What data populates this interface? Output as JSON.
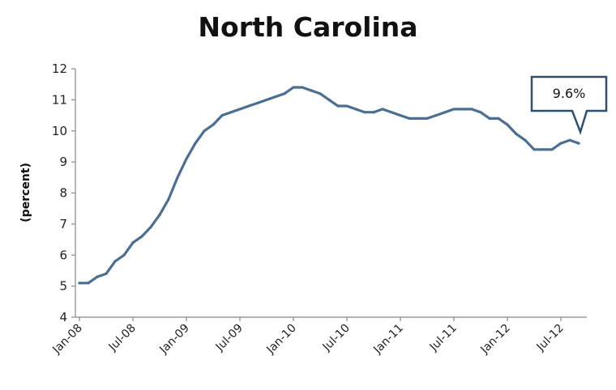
{
  "chart_data": {
    "type": "line",
    "title": "North Carolina",
    "xlabel": "",
    "ylabel": "(percent)",
    "ylim": [
      4,
      12
    ],
    "yticks": [
      "4",
      "5",
      "6",
      "7",
      "8",
      "9",
      "10",
      "11",
      "12"
    ],
    "xtick_labels": [
      "Jan-08",
      "Jul-08",
      "Jan-09",
      "Jul-09",
      "Jan-10",
      "Jul-10",
      "Jan-11",
      "Jul-11",
      "Jan-12",
      "Jul-12"
    ],
    "grid": false,
    "legend": "none",
    "line_color": "#4a6f93",
    "annotation": {
      "text": "9.6%",
      "month_index": 56,
      "value": 9.6
    },
    "series": [
      {
        "x": [
          "Jan-08",
          "Feb-08",
          "Mar-08",
          "Apr-08",
          "May-08",
          "Jun-08",
          "Jul-08",
          "Aug-08",
          "Sep-08",
          "Oct-08",
          "Nov-08",
          "Dec-08",
          "Jan-09",
          "Feb-09",
          "Mar-09",
          "Apr-09",
          "May-09",
          "Jun-09",
          "Jul-09",
          "Aug-09",
          "Sep-09",
          "Oct-09",
          "Nov-09",
          "Dec-09",
          "Jan-10",
          "Feb-10",
          "Mar-10",
          "Apr-10",
          "May-10",
          "Jun-10",
          "Jul-10",
          "Aug-10",
          "Sep-10",
          "Oct-10",
          "Nov-10",
          "Dec-10",
          "Jan-11",
          "Feb-11",
          "Mar-11",
          "Apr-11",
          "May-11",
          "Jun-11",
          "Jul-11",
          "Aug-11",
          "Sep-11",
          "Oct-11",
          "Nov-11",
          "Dec-11",
          "Jan-12",
          "Feb-12",
          "Mar-12",
          "Apr-12",
          "May-12",
          "Jun-12",
          "Jul-12",
          "Aug-12",
          "Sep-12"
        ],
        "values": [
          5.1,
          5.1,
          5.3,
          5.4,
          5.8,
          6.0,
          6.4,
          6.6,
          6.9,
          7.3,
          7.8,
          8.5,
          9.1,
          9.6,
          10.0,
          10.2,
          10.5,
          10.6,
          10.7,
          10.8,
          10.9,
          11.0,
          11.1,
          11.2,
          11.4,
          11.4,
          11.3,
          11.2,
          11.0,
          10.8,
          10.8,
          10.7,
          10.6,
          10.6,
          10.7,
          10.6,
          10.5,
          10.4,
          10.4,
          10.4,
          10.5,
          10.6,
          10.7,
          10.7,
          10.7,
          10.6,
          10.4,
          10.4,
          10.2,
          9.9,
          9.7,
          9.4,
          9.4,
          9.4,
          9.6,
          9.7,
          9.6
        ]
      }
    ]
  }
}
